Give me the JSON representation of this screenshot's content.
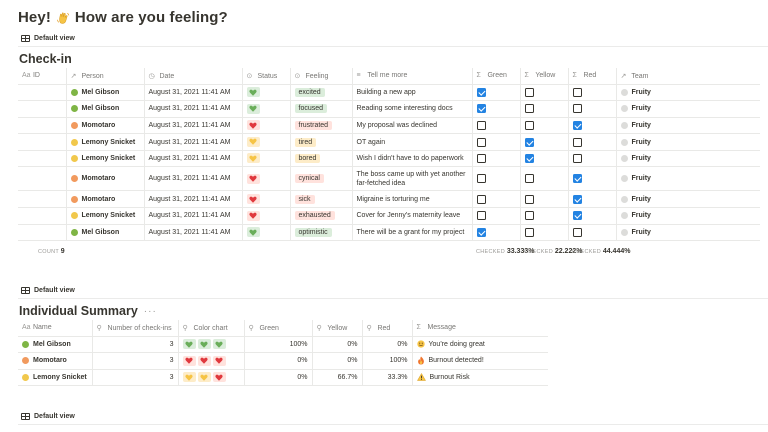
{
  "page": {
    "title": "Hey!",
    "title_rest": "How are you feeling?",
    "wave_icon": "waving-hand-icon"
  },
  "views": {
    "default_label": "Default view"
  },
  "checkin": {
    "title": "Check-in",
    "columns": {
      "id": "ID",
      "person": "Person",
      "date": "Date",
      "status": "Status",
      "feeling": "Feeling",
      "tell": "Tell me more",
      "green": "Green",
      "yellow": "Yellow",
      "red": "Red",
      "team": "Team"
    },
    "rows": [
      {
        "person": "Mel Gibson",
        "color": "lime",
        "date": "August 31, 2021 11:41 AM",
        "status": "green",
        "feeling": "excited",
        "tell": "Building a new app",
        "tell2": "",
        "g": true,
        "y": false,
        "r": false,
        "team": "Fruity"
      },
      {
        "person": "Mel Gibson",
        "color": "lime",
        "date": "August 31, 2021 11:41 AM",
        "status": "green",
        "feeling": "focused",
        "tell": "Reading some interesting docs",
        "tell2": "",
        "g": true,
        "y": false,
        "r": false,
        "team": "Fruity"
      },
      {
        "person": "Momotaro",
        "color": "peach",
        "date": "August 31, 2021 11:41 AM",
        "status": "red",
        "feeling": "frustrated",
        "tell": "My proposal was declined",
        "tell2": "",
        "g": false,
        "y": false,
        "r": true,
        "team": "Fruity"
      },
      {
        "person": "Lemony Snicket",
        "color": "lemon",
        "date": "August 31, 2021 11:41 AM",
        "status": "yellow",
        "feeling": "tired",
        "tell": "OT again",
        "tell2": "",
        "g": false,
        "y": true,
        "r": false,
        "team": "Fruity"
      },
      {
        "person": "Lemony Snicket",
        "color": "lemon",
        "date": "August 31, 2021 11:41 AM",
        "status": "yellow",
        "feeling": "bored",
        "tell": "Wish I didn't have to do paperwork",
        "tell2": "",
        "g": false,
        "y": true,
        "r": false,
        "team": "Fruity"
      },
      {
        "person": "Momotaro",
        "color": "peach",
        "date": "August 31, 2021 11:41 AM",
        "status": "red",
        "feeling": "cynical",
        "tell": "The boss came up with yet another",
        "tell2": "far-fetched idea",
        "g": false,
        "y": false,
        "r": true,
        "team": "Fruity"
      },
      {
        "person": "Momotaro",
        "color": "peach",
        "date": "August 31, 2021 11:41 AM",
        "status": "red",
        "feeling": "sick",
        "tell": "Migraine is torturing me",
        "tell2": "",
        "g": false,
        "y": false,
        "r": true,
        "team": "Fruity"
      },
      {
        "person": "Lemony Snicket",
        "color": "lemon",
        "date": "August 31, 2021 11:41 AM",
        "status": "red",
        "feeling": "exhausted",
        "tell": "Cover for Jenny's maternity leave",
        "tell2": "",
        "g": false,
        "y": false,
        "r": true,
        "team": "Fruity"
      },
      {
        "person": "Mel Gibson",
        "color": "lime",
        "date": "August 31, 2021 11:41 AM",
        "status": "green",
        "feeling": "optimistic",
        "tell": "There will be a grant for my project",
        "tell2": "",
        "g": true,
        "y": false,
        "r": false,
        "team": "Fruity"
      }
    ],
    "footer": {
      "count_label": "COUNT",
      "count_value": "9",
      "checked_label": "CHECKED",
      "green_pct": "33.333%",
      "yellow_pct": "22.222%",
      "red_pct": "44.444%"
    }
  },
  "summary": {
    "title": "Individual Summary",
    "more": "···",
    "columns": {
      "name": "Name",
      "checkins": "Number of check-ins",
      "chart": "Color chart",
      "green": "Green",
      "yellow": "Yellow",
      "red": "Red",
      "message": "Message"
    },
    "rows": [
      {
        "name": "Mel Gibson",
        "color": "lime",
        "checkins": "3",
        "hearts": [
          "green",
          "green",
          "green"
        ],
        "green": "100%",
        "yellow": "0%",
        "red": "0%",
        "emoji": "smile",
        "message": "You're doing great"
      },
      {
        "name": "Momotaro",
        "color": "peach",
        "checkins": "3",
        "hearts": [
          "red",
          "red",
          "red"
        ],
        "green": "0%",
        "yellow": "0%",
        "red": "100%",
        "emoji": "fire",
        "message": "Burnout detected!"
      },
      {
        "name": "Lemony Snicket",
        "color": "lemon",
        "checkins": "3",
        "hearts": [
          "yellow",
          "yellow",
          "red"
        ],
        "green": "0%",
        "yellow": "66.7%",
        "red": "33.3%",
        "emoji": "warning",
        "message": "Burnout Risk"
      }
    ]
  },
  "colors": {
    "heart_green": "#6aae5a",
    "heart_red": "#e0393e",
    "heart_yellow": "#f6c445",
    "check_blue": "#2383e2"
  }
}
